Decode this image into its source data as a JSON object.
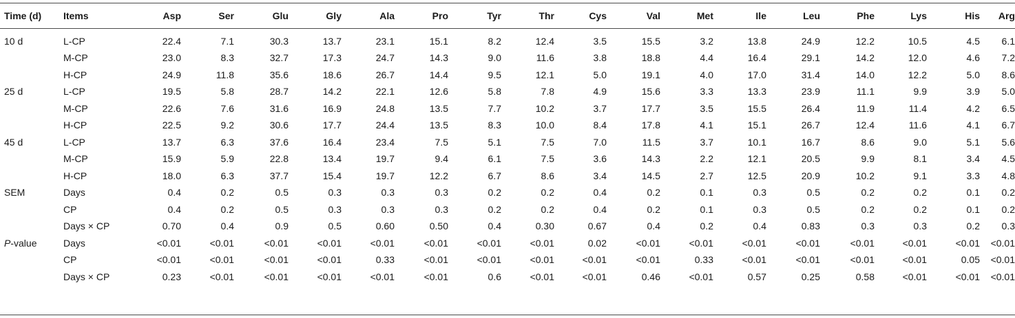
{
  "headers": [
    "Time (d)",
    "Items",
    "Asp",
    "Ser",
    "Glu",
    "Gly",
    "Ala",
    "Pro",
    "Tyr",
    "Thr",
    "Cys",
    "Val",
    "Met",
    "Ile",
    "Leu",
    "Phe",
    "Lys",
    "His",
    "Arg"
  ],
  "rows": [
    {
      "time": "10 d",
      "item": "L-CP",
      "values": [
        "22.4",
        "7.1",
        "30.3",
        "13.7",
        "23.1",
        "15.1",
        "8.2",
        "12.4",
        "3.5",
        "15.5",
        "3.2",
        "13.8",
        "24.9",
        "12.2",
        "10.5",
        "4.5",
        "6.1"
      ]
    },
    {
      "time": "",
      "item": "M-CP",
      "values": [
        "23.0",
        "8.3",
        "32.7",
        "17.3",
        "24.7",
        "14.3",
        "9.0",
        "11.6",
        "3.8",
        "18.8",
        "4.4",
        "16.4",
        "29.1",
        "14.2",
        "12.0",
        "4.6",
        "7.2"
      ]
    },
    {
      "time": "",
      "item": "H-CP",
      "values": [
        "24.9",
        "11.8",
        "35.6",
        "18.6",
        "26.7",
        "14.4",
        "9.5",
        "12.1",
        "5.0",
        "19.1",
        "4.0",
        "17.0",
        "31.4",
        "14.0",
        "12.2",
        "5.0",
        "8.6"
      ]
    },
    {
      "time": "25 d",
      "item": "L-CP",
      "values": [
        "19.5",
        "5.8",
        "28.7",
        "14.2",
        "22.1",
        "12.6",
        "5.8",
        "7.8",
        "4.9",
        "15.6",
        "3.3",
        "13.3",
        "23.9",
        "11.1",
        "9.9",
        "3.9",
        "5.0"
      ]
    },
    {
      "time": "",
      "item": "M-CP",
      "values": [
        "22.6",
        "7.6",
        "31.6",
        "16.9",
        "24.8",
        "13.5",
        "7.7",
        "10.2",
        "3.7",
        "17.7",
        "3.5",
        "15.5",
        "26.4",
        "11.9",
        "11.4",
        "4.2",
        "6.5"
      ]
    },
    {
      "time": "",
      "item": "H-CP",
      "values": [
        "22.5",
        "9.2",
        "30.6",
        "17.7",
        "24.4",
        "13.5",
        "8.3",
        "10.0",
        "8.4",
        "17.8",
        "4.1",
        "15.1",
        "26.7",
        "12.4",
        "11.6",
        "4.1",
        "6.7"
      ]
    },
    {
      "time": "45 d",
      "item": "L-CP",
      "values": [
        "13.7",
        "6.3",
        "37.6",
        "16.4",
        "23.4",
        "7.5",
        "5.1",
        "7.5",
        "7.0",
        "11.5",
        "3.7",
        "10.1",
        "16.7",
        "8.6",
        "9.0",
        "5.1",
        "5.6"
      ]
    },
    {
      "time": "",
      "item": "M-CP",
      "values": [
        "15.9",
        "5.9",
        "22.8",
        "13.4",
        "19.7",
        "9.4",
        "6.1",
        "7.5",
        "3.6",
        "14.3",
        "2.2",
        "12.1",
        "20.5",
        "9.9",
        "8.1",
        "3.4",
        "4.5"
      ]
    },
    {
      "time": "",
      "item": "H-CP",
      "values": [
        "18.0",
        "6.3",
        "37.7",
        "15.4",
        "19.7",
        "12.2",
        "6.7",
        "8.6",
        "3.4",
        "14.5",
        "2.7",
        "12.5",
        "20.9",
        "10.2",
        "9.1",
        "3.3",
        "4.8"
      ]
    },
    {
      "time": "SEM",
      "item": "Days",
      "values": [
        "0.4",
        "0.2",
        "0.5",
        "0.3",
        "0.3",
        "0.3",
        "0.2",
        "0.2",
        "0.4",
        "0.2",
        "0.1",
        "0.3",
        "0.5",
        "0.2",
        "0.2",
        "0.1",
        "0.2"
      ]
    },
    {
      "time": "",
      "item": "CP",
      "values": [
        "0.4",
        "0.2",
        "0.5",
        "0.3",
        "0.3",
        "0.3",
        "0.2",
        "0.2",
        "0.4",
        "0.2",
        "0.1",
        "0.3",
        "0.5",
        "0.2",
        "0.2",
        "0.1",
        "0.2"
      ]
    },
    {
      "time": "",
      "item": "Days × CP",
      "values": [
        "0.70",
        "0.4",
        "0.9",
        "0.5",
        "0.60",
        "0.50",
        "0.4",
        "0.30",
        "0.67",
        "0.4",
        "0.2",
        "0.4",
        "0.83",
        "0.3",
        "0.3",
        "0.2",
        "0.3"
      ]
    },
    {
      "time_italic": "P",
      "time": "-value",
      "item": "Days",
      "values": [
        "<0.01",
        "<0.01",
        "<0.01",
        "<0.01",
        "<0.01",
        "<0.01",
        "<0.01",
        "<0.01",
        "0.02",
        "<0.01",
        "<0.01",
        "<0.01",
        "<0.01",
        "<0.01",
        "<0.01",
        "<0.01",
        "<0.01"
      ]
    },
    {
      "time": "",
      "item": "CP",
      "values": [
        "<0.01",
        "<0.01",
        "<0.01",
        "<0.01",
        "0.33",
        "<0.01",
        "<0.01",
        "<0.01",
        "<0.01",
        "<0.01",
        "0.33",
        "<0.01",
        "<0.01",
        "<0.01",
        "<0.01",
        "0.05",
        "<0.01"
      ]
    },
    {
      "time": "",
      "item": "Days × CP",
      "values": [
        "0.23",
        "<0.01",
        "<0.01",
        "<0.01",
        "<0.01",
        "<0.01",
        "0.6",
        "<0.01",
        "<0.01",
        "0.46",
        "<0.01",
        "0.57",
        "0.25",
        "0.58",
        "<0.01",
        "<0.01",
        "<0.01"
      ]
    }
  ]
}
